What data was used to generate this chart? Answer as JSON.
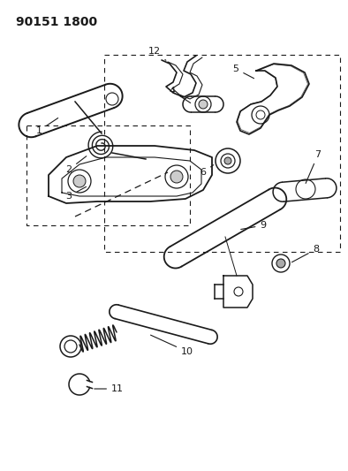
{
  "title": "90151 1800",
  "bg": "#ffffff",
  "lc": "#1a1a1a",
  "figsize": [
    3.94,
    5.33
  ],
  "dpi": 100,
  "xlim": [
    0,
    394
  ],
  "ylim": [
    0,
    533
  ]
}
